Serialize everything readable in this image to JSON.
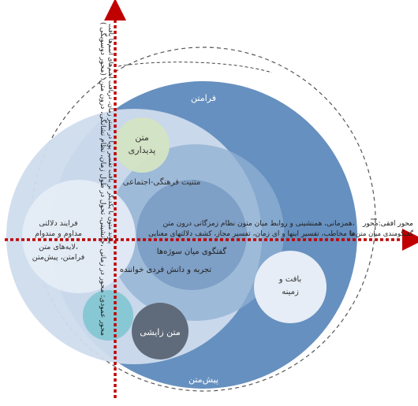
{
  "labels": {
    "frametext": "فرامتن",
    "pretext": "پیش‌متن",
    "phenomenal_text": [
      "متن",
      "پدیداری"
    ],
    "sociocultural_intertext": "متنیت فرهنگی-اجتماعی",
    "semiotic_process": [
      "فرایند دلالتی",
      "مداوم و مندوام"
    ],
    "text_layers": [
      "لایه‌های متن،",
      "فرامتن، پیش‌متن"
    ],
    "horizontal_relations": "همزمانی، همنشینی و روابط میان متون  نظام زمزگانی درون متن،",
    "mediated_relations": "با مخاطب، تفسیر اینها و ای زمان، تفسیر مجاز، کشف دلالتهای معنایی",
    "dialogue_between_sources": "گفتگوی میان سوژه‌ها",
    "individual_experience": "تجربه و دانش فردی خواننده",
    "texture_context": [
      "بافت و",
      "زمینه"
    ],
    "generative_text": "متن زایشی",
    "vertical_axis_title": "محور عمودی: محور در زمانی ،جانشینی، تحول در طول زمان، نظام نشانگی، درون متن، (محور دوسویگی )",
    "vertical_axis_sub": "پیوند متون با یکدیگر بر بافت تفسیر پویا در بستر زمان، دریافت اسم‌های اسم‌ها بافت",
    "horizontal_axis_title": "محور افقی:محور",
    "horizontal_axis_sub": "گفتگومندی میان متن‌ها"
  },
  "colors": {
    "outer_fill": "#6690bf",
    "middle_fill": "#cfdced",
    "pale_fill": "#e6edf6",
    "phenomenal_fill": "#d4e4c3",
    "inner_mid": "#8fb0d3",
    "inner_dark": "#7194bd",
    "teal": "#7fc6d2",
    "dark_circle": "#5f6b7a",
    "axis_red": "#c00000"
  }
}
